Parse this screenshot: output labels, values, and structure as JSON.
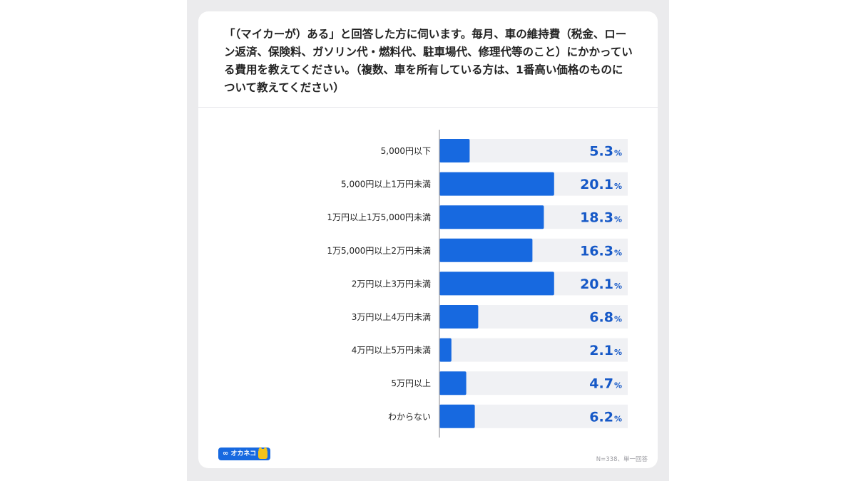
{
  "question": "「（マイカーが）ある」と回答した方に伺います。毎月、車の維持費（税金、ローン返済、保険料、ガソリン代・燃料代、駐車場代、修理代等のこと）にかかっている費用を教えてください。（複数、車を所有している方は、1番高い価格のものについて教えてください）",
  "footnote": "N=338、単一回答",
  "logo": {
    "mark": "∞",
    "text": "オカネコ",
    "icon": "cat-mascot-icon"
  },
  "colors": {
    "bar": "#1769e0",
    "track": "#f0f1f4",
    "value_text": "#1558c7",
    "label_text": "#222222",
    "axis": "#9a9aa0"
  },
  "chart_data": {
    "type": "bar",
    "orientation": "horizontal",
    "categories": [
      "5,000円以下",
      "5,000円以上1万円未満",
      "1万円以上1万5,000円未満",
      "1万5,000円以上2万円未満",
      "2万円以上3万円未満",
      "3万円以上4万円未満",
      "4万円以上5万円未満",
      "5万円以上",
      "わからない"
    ],
    "values": [
      5.3,
      20.1,
      18.3,
      16.3,
      20.1,
      6.8,
      2.1,
      4.7,
      6.2
    ],
    "value_unit": "%",
    "xlim": [
      0,
      33
    ],
    "grid": false,
    "legend": "none"
  }
}
